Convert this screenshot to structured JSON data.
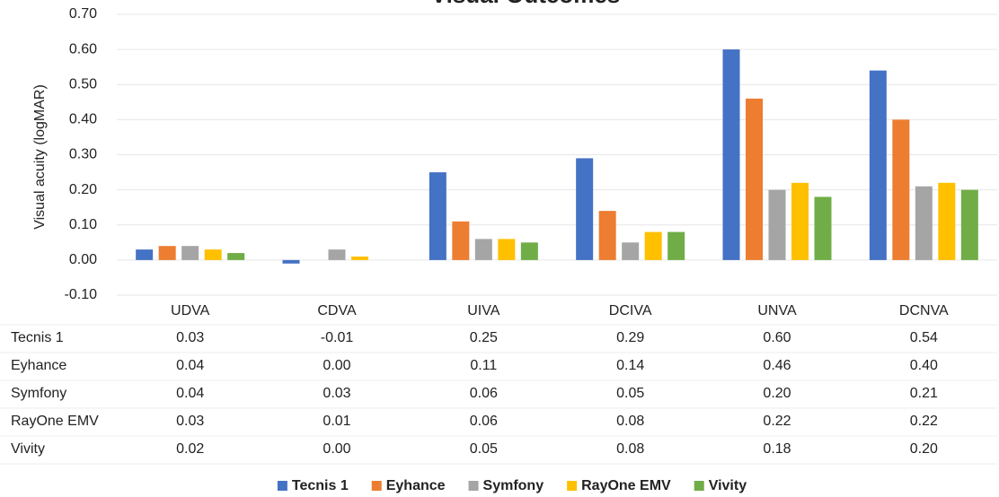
{
  "chart_data": {
    "type": "bar",
    "title": "Visual Outcomes",
    "y_label": "Visual acuity (logMAR)",
    "categories": [
      "UDVA",
      "CDVA",
      "UIVA",
      "DCIVA",
      "UNVA",
      "DCNVA"
    ],
    "series": [
      {
        "name": "Tecnis 1",
        "color": "#4472c4",
        "values": [
          0.03,
          -0.01,
          0.25,
          0.29,
          0.6,
          0.54
        ],
        "value_labels": [
          "0.03",
          "-0.01",
          "0.25",
          "0.29",
          "0.60",
          "0.54"
        ]
      },
      {
        "name": "Eyhance",
        "color": "#ed7d31",
        "values": [
          0.04,
          0.0,
          0.11,
          0.14,
          0.46,
          0.4
        ],
        "value_labels": [
          "0.04",
          "0.00",
          "0.11",
          "0.14",
          "0.46",
          "0.40"
        ]
      },
      {
        "name": "Symfony",
        "color": "#a5a5a5",
        "values": [
          0.04,
          0.03,
          0.06,
          0.05,
          0.2,
          0.21
        ],
        "value_labels": [
          "0.04",
          "0.03",
          "0.06",
          "0.05",
          "0.20",
          "0.21"
        ]
      },
      {
        "name": "RayOne EMV",
        "color": "#ffc000",
        "values": [
          0.03,
          0.01,
          0.06,
          0.08,
          0.22,
          0.22
        ],
        "value_labels": [
          "0.03",
          "0.01",
          "0.06",
          "0.08",
          "0.22",
          "0.22"
        ]
      },
      {
        "name": "Vivity",
        "color": "#70ad47",
        "values": [
          0.02,
          0.0,
          0.05,
          0.08,
          0.18,
          0.2
        ],
        "value_labels": [
          "0.02",
          "0.00",
          "0.05",
          "0.08",
          "0.18",
          "0.20"
        ]
      }
    ],
    "ylim": [
      -0.1,
      0.7
    ],
    "yticks": [
      {
        "value": -0.1,
        "label": "-0.10"
      },
      {
        "value": 0,
        "label": "0.00"
      },
      {
        "value": 0.1,
        "label": "0.10"
      },
      {
        "value": 0.2,
        "label": "0.20"
      },
      {
        "value": 0.3,
        "label": "0.30"
      },
      {
        "value": 0.4,
        "label": "0.40"
      },
      {
        "value": 0.5,
        "label": "0.50"
      },
      {
        "value": 0.6,
        "label": "0.60"
      },
      {
        "value": 0.7,
        "label": "0.70"
      }
    ],
    "grid": true
  }
}
